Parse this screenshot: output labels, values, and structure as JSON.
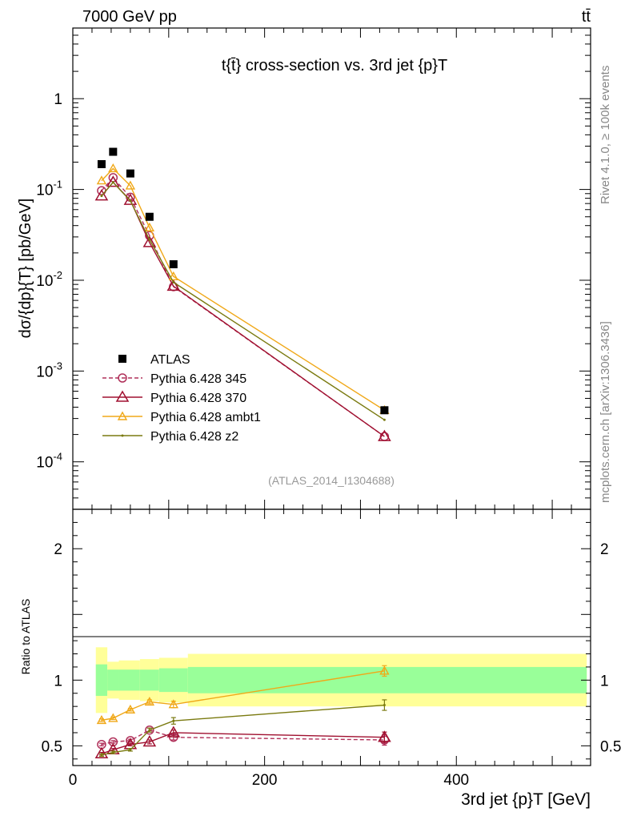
{
  "header": {
    "energy_label": "7000 GeV pp",
    "process_label": "tt̄"
  },
  "side_labels": {
    "rivet": "Rivet 4.1.0, ≥ 100k events",
    "mcplots": "mcplots.cern.ch [arXiv:1306.3436]"
  },
  "analysis_id": "(ATLAS_2014_I1304688)",
  "colors": {
    "atlas": "#000000",
    "p345": "#b0305a",
    "p370": "#a01030",
    "ambt1": "#f0a818",
    "z2": "#7a7a10",
    "band_inner": "#99ff99",
    "band_outer": "#ffff99"
  },
  "chart_data": [
    {
      "type": "scatter",
      "panel": "main",
      "title": "t{t̄} cross-section vs. 3rd jet {p}T",
      "ylabel": "dσ/{dp}{T} [pb/GeV]",
      "yscale": "log",
      "ylim": [
        3e-05,
        6
      ],
      "xlim": [
        0,
        540
      ],
      "ytick_labels": [
        "1",
        "10^-1",
        "10^-2",
        "10^-3",
        "10^-4"
      ],
      "legend_position": "lower-left",
      "series": [
        {
          "name": "ATLAS",
          "key": "atlas",
          "style": "square",
          "x": [
            30,
            42,
            60,
            80,
            105,
            325
          ],
          "y": [
            0.19,
            0.26,
            0.15,
            0.05,
            0.015,
            0.00037
          ]
        },
        {
          "name": "Pythia 6.428 345",
          "key": "p345",
          "style": "circle-dashed",
          "x": [
            30,
            42,
            60,
            80,
            105,
            325
          ],
          "y": [
            0.097,
            0.135,
            0.082,
            0.031,
            0.0085,
            0.00019
          ]
        },
        {
          "name": "Pythia 6.428 370",
          "key": "p370",
          "style": "triangle",
          "x": [
            30,
            42,
            60,
            80,
            105,
            325
          ],
          "y": [
            0.085,
            0.12,
            0.076,
            0.026,
            0.0086,
            0.00019
          ]
        },
        {
          "name": "Pythia 6.428 ambt1",
          "key": "ambt1",
          "style": "triangle-small",
          "x": [
            30,
            42,
            60,
            80,
            105,
            325
          ],
          "y": [
            0.125,
            0.17,
            0.11,
            0.038,
            0.011,
            0.00037
          ]
        },
        {
          "name": "Pythia 6.428 z2",
          "key": "z2",
          "style": "dot",
          "x": [
            30,
            42,
            60,
            80,
            105,
            325
          ],
          "y": [
            0.085,
            0.12,
            0.075,
            0.028,
            0.0095,
            0.00029
          ]
        }
      ]
    },
    {
      "type": "line",
      "panel": "ratio",
      "ylabel": "Ratio to ATLAS",
      "xlabel": "3rd jet {p}T [GeV]",
      "xlim": [
        0,
        540
      ],
      "ylim": [
        0.35,
        2.3
      ],
      "x_ticks": [
        0,
        200,
        400
      ],
      "y_ticks": [
        0.5,
        1,
        2
      ],
      "bands": {
        "edges": [
          24,
          36,
          48,
          70,
          90,
          120,
          536
        ],
        "inner": [
          0.12,
          0.08,
          0.08,
          0.08,
          0.09,
          0.1
        ],
        "outer": [
          0.25,
          0.14,
          0.15,
          0.16,
          0.17,
          0.2
        ]
      },
      "series": [
        {
          "name": "Pythia 6.428 345",
          "key": "p345",
          "x": [
            30,
            42,
            60,
            80,
            105,
            325
          ],
          "y": [
            0.51,
            0.53,
            0.54,
            0.62,
            0.565,
            0.545
          ],
          "err": [
            0.01,
            0.01,
            0.01,
            0.015,
            0.02,
            0.04
          ]
        },
        {
          "name": "Pythia 6.428 370",
          "key": "p370",
          "x": [
            30,
            42,
            60,
            80,
            105,
            325
          ],
          "y": [
            0.44,
            0.47,
            0.51,
            0.53,
            0.6,
            0.565
          ],
          "err": [
            0.01,
            0.01,
            0.01,
            0.015,
            0.02,
            0.04
          ]
        },
        {
          "name": "Pythia 6.428 ambt1",
          "key": "ambt1",
          "x": [
            30,
            42,
            60,
            80,
            105,
            325
          ],
          "y": [
            0.695,
            0.71,
            0.775,
            0.835,
            0.815,
            1.07
          ],
          "err": [
            0.01,
            0.01,
            0.01,
            0.015,
            0.025,
            0.04
          ]
        },
        {
          "name": "Pythia 6.428 z2",
          "key": "z2",
          "x": [
            30,
            42,
            60,
            80,
            105,
            325
          ],
          "y": [
            0.43,
            0.45,
            0.47,
            0.62,
            0.69,
            0.81
          ],
          "err": [
            0.01,
            0.01,
            0.01,
            0.015,
            0.025,
            0.04
          ]
        }
      ]
    }
  ]
}
